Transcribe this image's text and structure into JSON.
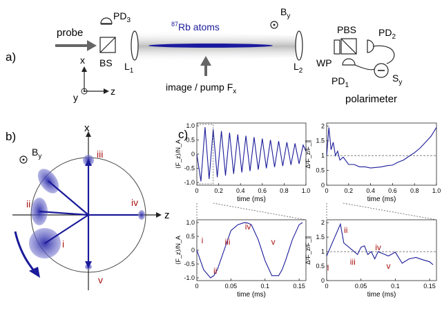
{
  "panel_a": {
    "label": "a)",
    "probe": "probe",
    "bs": "BS",
    "pd3_base": "PD",
    "pd3_sub": "3",
    "atoms_sup": "87",
    "atoms_main": "Rb atoms",
    "by_base": "B",
    "by_sub": "y",
    "l1_base": "L",
    "l1_sub": "1",
    "l2_base": "L",
    "l2_sub": "2",
    "image_pump_main": "image / pump F",
    "image_pump_sub": "x",
    "axis_x": "x",
    "axis_y": "y",
    "axis_z": "z",
    "pbs": "PBS",
    "pd2_base": "PD",
    "pd2_sub": "2",
    "wp": "WP",
    "pd1_base": "PD",
    "pd1_sub": "1",
    "sy_base": "S",
    "sy_sub": "y",
    "polarimeter": "polarimeter",
    "colors": {
      "beam": "#222288",
      "arrow": "#666666"
    }
  },
  "panel_b": {
    "label": "b)",
    "axis_x": "x",
    "axis_z": "z",
    "by_base": "B",
    "by_sub": "y",
    "markers": [
      "i",
      "ii",
      "iii",
      "iv",
      "v"
    ],
    "colors": {
      "spin": "#1a1a9a",
      "blob": "#3a3ab8",
      "marker": "#aa1111"
    }
  },
  "panel_c": {
    "label": "c)",
    "ylabel_left": "⟨F_z⟩/N_A",
    "ylabel_right": "Δ²F_z/F_∥",
    "xlabel": "time (ms)",
    "top_left": {
      "xticks": [
        "0",
        "0.2",
        "0.4",
        "0.6",
        "0.8",
        "1.0"
      ],
      "yticks": [
        "1.0",
        "0.5",
        "0",
        "-0.5",
        "-1.0"
      ]
    },
    "top_right": {
      "xticks": [
        "0",
        "0.2",
        "0.4",
        "0.6",
        "0.8",
        "1.0"
      ],
      "yticks": [
        "2",
        "1.5",
        "1",
        "0.5",
        "0"
      ]
    },
    "bottom_left": {
      "xticks": [
        "0",
        "0.05",
        "0.1",
        "0.15"
      ],
      "yticks": [
        "1.0",
        "0.5",
        "0",
        "-0.5",
        "-1.0"
      ],
      "markers": [
        "i",
        "ii",
        "iii",
        "iv",
        "v"
      ]
    },
    "bottom_right": {
      "xticks": [
        "0",
        "0.05",
        "0.1",
        "0.15"
      ],
      "yticks": [
        "2",
        "1.5",
        "1",
        "0.5",
        "0"
      ],
      "markers": [
        "i",
        "ii",
        "iii",
        "iv",
        "v"
      ]
    },
    "colors": {
      "line": "#1a1a9a",
      "marker": "#aa1111",
      "dashed": "#555555"
    }
  },
  "chart_data": [
    {
      "type": "line",
      "panel": "c-top-left",
      "xlabel": "time (ms)",
      "ylabel": "⟨F_z⟩/N_A",
      "xlim": [
        0,
        1.0
      ],
      "ylim": [
        -1.1,
        1.1
      ],
      "series": [
        {
          "x": [
            0,
            0.0375,
            0.075,
            0.1125,
            0.15,
            0.1875,
            0.225,
            0.2625,
            0.3,
            0.3375,
            0.375,
            0.4125,
            0.45,
            0.4875,
            0.525,
            0.5625,
            0.6,
            0.6375,
            0.675,
            0.7125,
            0.75,
            0.7875,
            0.825,
            0.8625,
            0.9,
            0.9375,
            0.975,
            1.0
          ],
          "y": [
            0.0,
            -0.96,
            0.95,
            -0.88,
            0.88,
            -0.82,
            0.82,
            -0.76,
            0.76,
            -0.7,
            0.7,
            -0.65,
            0.65,
            -0.6,
            0.6,
            -0.55,
            0.55,
            -0.5,
            0.5,
            -0.46,
            0.46,
            -0.42,
            0.42,
            -0.38,
            0.38,
            -0.34,
            0.32,
            0.1
          ]
        }
      ]
    },
    {
      "type": "line",
      "panel": "c-top-right",
      "xlabel": "time (ms)",
      "ylabel": "Δ²F_z/F_∥",
      "xlim": [
        0,
        1.0
      ],
      "ylim": [
        0,
        2.1
      ],
      "series": [
        {
          "x": [
            0,
            0.02,
            0.04,
            0.06,
            0.08,
            0.1,
            0.12,
            0.15,
            0.2,
            0.25,
            0.3,
            0.35,
            0.4,
            0.45,
            0.5,
            0.55,
            0.6,
            0.65,
            0.7,
            0.75,
            0.8,
            0.85,
            0.9,
            0.95,
            1.0
          ],
          "y": [
            1.0,
            1.95,
            1.2,
            1.45,
            1.0,
            1.15,
            0.85,
            0.95,
            0.7,
            0.7,
            0.62,
            0.62,
            0.58,
            0.6,
            0.62,
            0.66,
            0.68,
            0.78,
            0.85,
            0.98,
            1.1,
            1.25,
            1.45,
            1.65,
            1.95
          ]
        }
      ]
    },
    {
      "type": "line",
      "panel": "c-bottom-left",
      "xlabel": "time (ms)",
      "ylabel": "⟨F_z⟩/N_A",
      "xlim": [
        0,
        0.16
      ],
      "ylim": [
        -1.1,
        1.1
      ],
      "series": [
        {
          "x": [
            0,
            0.01,
            0.02,
            0.025,
            0.03,
            0.04,
            0.05,
            0.06,
            0.07,
            0.075,
            0.08,
            0.09,
            0.1,
            0.11,
            0.12,
            0.125,
            0.13,
            0.14,
            0.15,
            0.155
          ],
          "y": [
            0.0,
            -0.71,
            -1.0,
            -0.92,
            -0.71,
            0.0,
            0.71,
            0.92,
            1.0,
            0.98,
            0.92,
            0.38,
            -0.38,
            -0.92,
            -0.92,
            -0.71,
            -0.38,
            0.38,
            0.92,
            1.0
          ]
        }
      ]
    },
    {
      "type": "line",
      "panel": "c-bottom-right",
      "xlabel": "time (ms)",
      "ylabel": "Δ²F_z/F_∥",
      "xlim": [
        0,
        0.16
      ],
      "ylim": [
        0,
        2.1
      ],
      "series": [
        {
          "x": [
            0,
            0.01,
            0.02,
            0.025,
            0.03,
            0.04,
            0.045,
            0.05,
            0.055,
            0.06,
            0.065,
            0.07,
            0.075,
            0.08,
            0.09,
            0.1,
            0.11,
            0.12,
            0.13,
            0.14,
            0.15,
            0.155
          ],
          "y": [
            0.85,
            1.4,
            1.95,
            1.3,
            1.2,
            1.0,
            0.9,
            1.15,
            1.2,
            0.9,
            1.0,
            0.75,
            1.0,
            0.95,
            0.85,
            0.98,
            0.6,
            0.75,
            0.8,
            0.72,
            0.65,
            0.55
          ]
        }
      ]
    }
  ]
}
